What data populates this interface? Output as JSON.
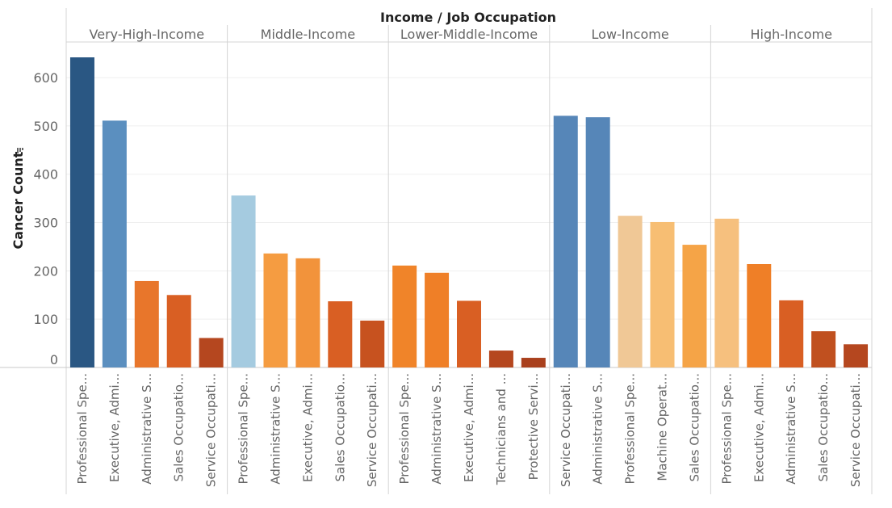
{
  "chart_data": {
    "type": "bar",
    "title": "Income / Job Occupation",
    "ylabel": "Cancer Count",
    "ylabel_icon": "sort-descending-icon",
    "ylim": [
      0,
      650
    ],
    "yticks": [
      0,
      100,
      200,
      300,
      400,
      500,
      600
    ],
    "grid": true,
    "panels": [
      {
        "name": "Very-High-Income",
        "bars": [
          {
            "label": "Professional Spe...",
            "value": 642,
            "color": "#2a5783"
          },
          {
            "label": "Executive, Admi...",
            "value": 511,
            "color": "#5b8fbf"
          },
          {
            "label": "Administrative S...",
            "value": 179,
            "color": "#e8762b"
          },
          {
            "label": "Sales Occupatio...",
            "value": 150,
            "color": "#d95f23"
          },
          {
            "label": "Service Occupati...",
            "value": 61,
            "color": "#b5471f"
          }
        ]
      },
      {
        "name": "Middle-Income",
        "bars": [
          {
            "label": "Professional Spe...",
            "value": 356,
            "color": "#a5cbe0"
          },
          {
            "label": "Administrative S...",
            "value": 236,
            "color": "#f59c41"
          },
          {
            "label": "Executive, Admi...",
            "value": 226,
            "color": "#f2933b"
          },
          {
            "label": "Sales Occupatio...",
            "value": 137,
            "color": "#d95f23"
          },
          {
            "label": "Service Occupati...",
            "value": 97,
            "color": "#c7521f"
          }
        ]
      },
      {
        "name": "Lower-Middle-Income",
        "bars": [
          {
            "label": "Professional Spe...",
            "value": 211,
            "color": "#f08429"
          },
          {
            "label": "Administrative S...",
            "value": 196,
            "color": "#ef7f27"
          },
          {
            "label": "Executive, Admi...",
            "value": 138,
            "color": "#d95f23"
          },
          {
            "label": "Technicians and ...",
            "value": 35,
            "color": "#b5471f"
          },
          {
            "label": "Protective Servi...",
            "value": 20,
            "color": "#a9401d"
          }
        ]
      },
      {
        "name": "Low-Income",
        "bars": [
          {
            "label": "Service Occupati...",
            "value": 521,
            "color": "#5686b8"
          },
          {
            "label": "Administrative S...",
            "value": 518,
            "color": "#5686b8"
          },
          {
            "label": "Professional Spe...",
            "value": 314,
            "color": "#f0c896"
          },
          {
            "label": "Machine Operat...",
            "value": 301,
            "color": "#f7be73"
          },
          {
            "label": "Sales Occupatio...",
            "value": 254,
            "color": "#f5a447"
          }
        ]
      },
      {
        "name": "High-Income",
        "bars": [
          {
            "label": "Professional Spe...",
            "value": 308,
            "color": "#f6c07e"
          },
          {
            "label": "Executive, Admi...",
            "value": 214,
            "color": "#ef7f27"
          },
          {
            "label": "Administrative S...",
            "value": 139,
            "color": "#d95f23"
          },
          {
            "label": "Sales Occupatio...",
            "value": 75,
            "color": "#c0501f"
          },
          {
            "label": "Service Occupati...",
            "value": 48,
            "color": "#b5471f"
          }
        ]
      }
    ]
  }
}
